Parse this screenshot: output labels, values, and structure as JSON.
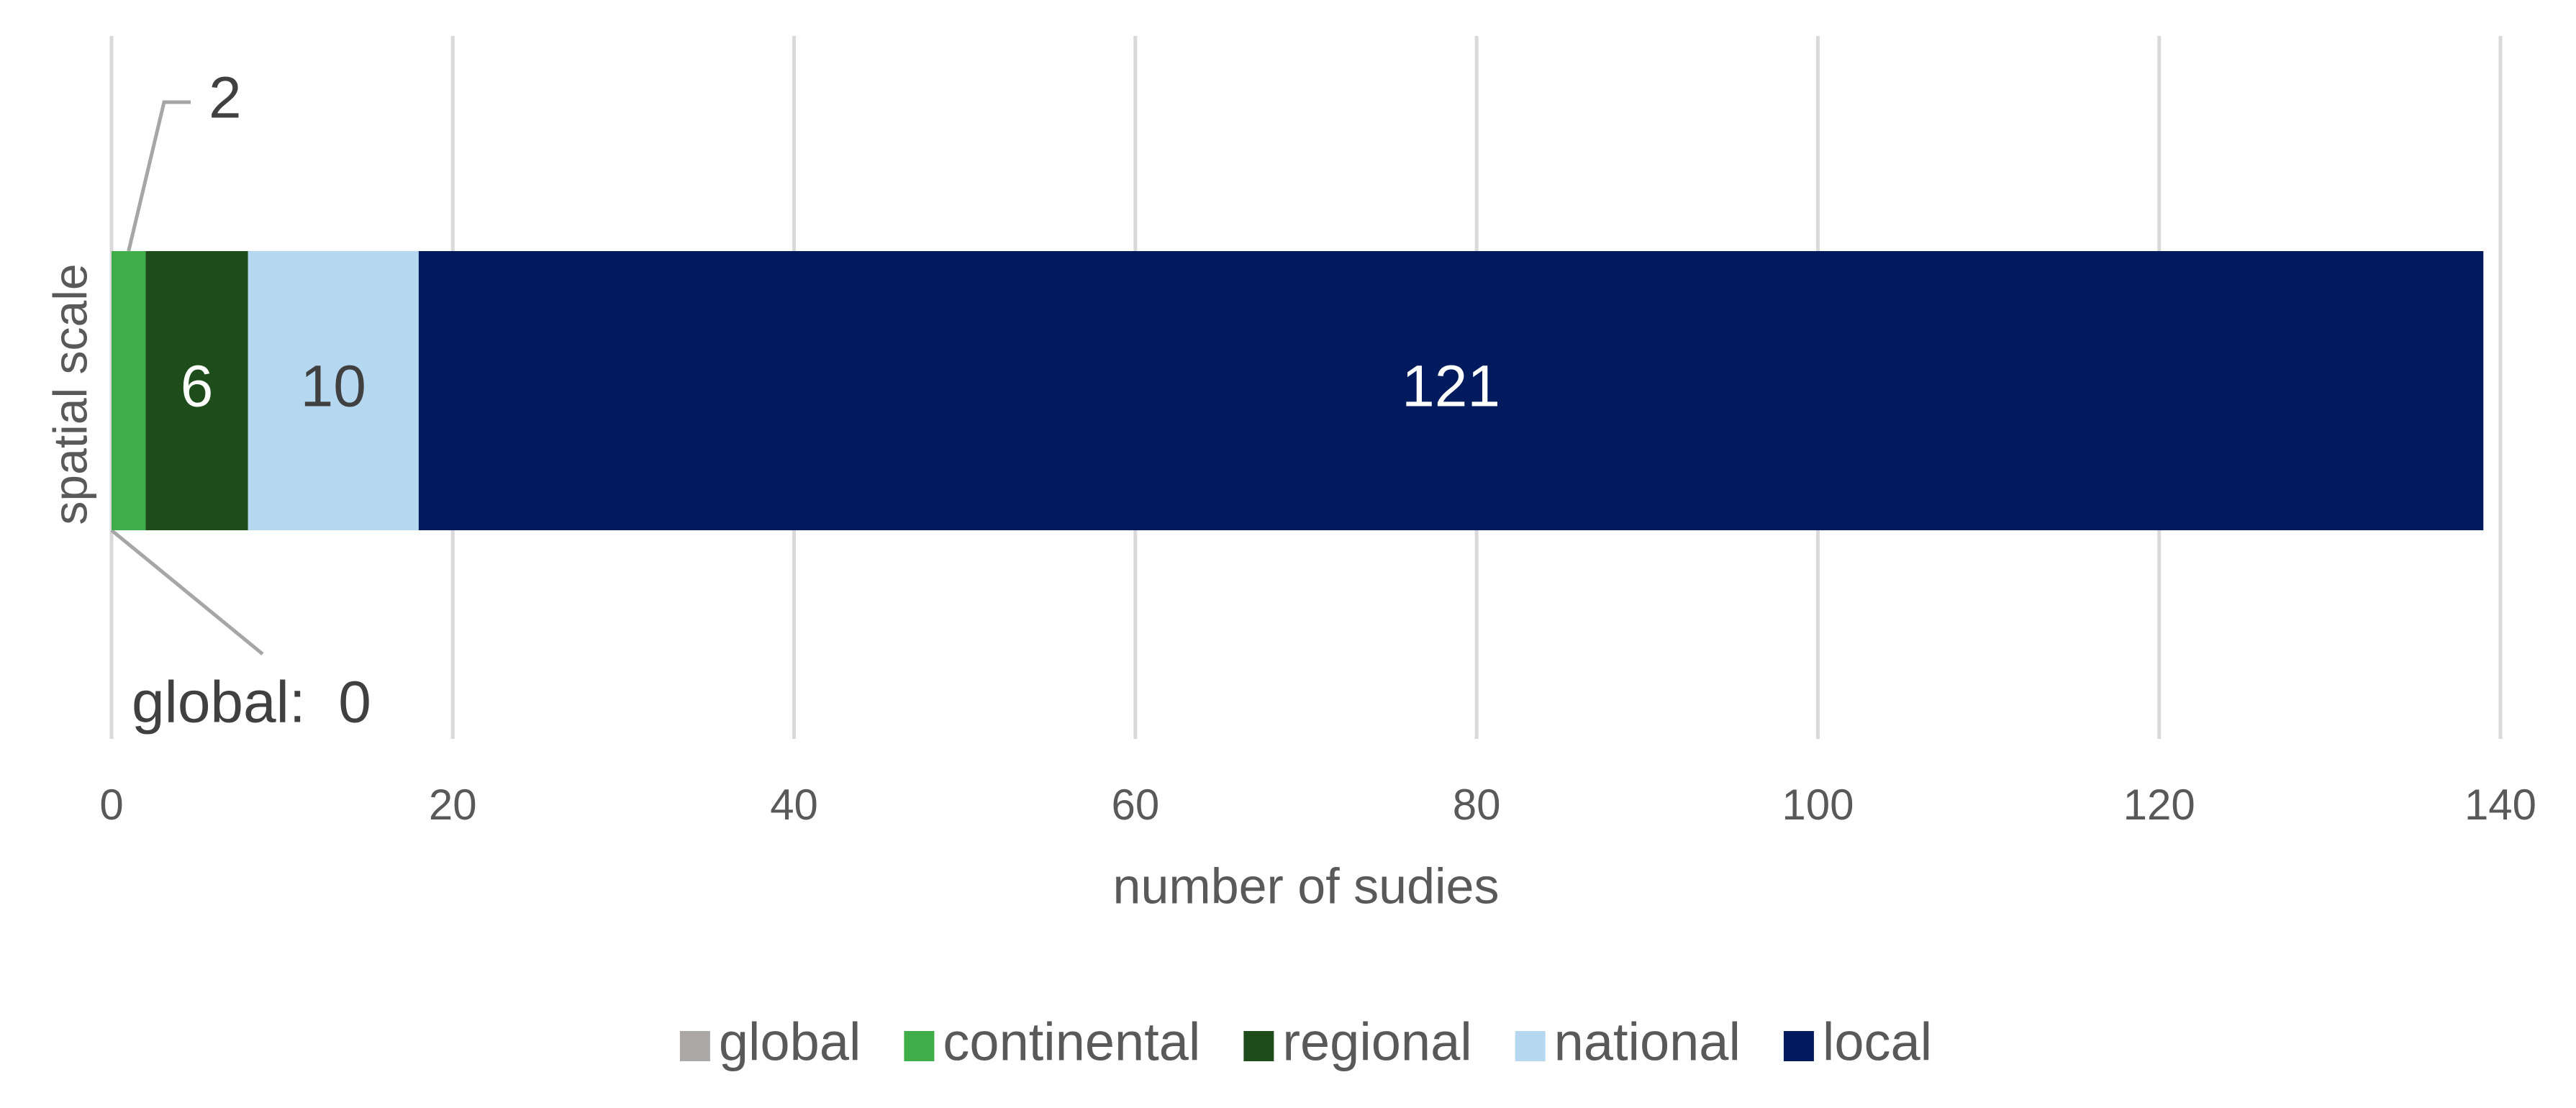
{
  "chart_data": {
    "type": "stacked_bar_horizontal",
    "x_label": "number of sudies",
    "y_label": "spatial scale",
    "series": [
      {
        "name": "global",
        "color": "#aaa7a6",
        "values": [
          0
        ],
        "value_labels": [
          "global:  0"
        ]
      },
      {
        "name": "continental",
        "color": "#3fae49",
        "values": [
          2
        ]
      },
      {
        "name": "regional",
        "color": "#1e4d1b",
        "values": [
          6
        ]
      },
      {
        "name": "national",
        "color": "#b5d8f0",
        "values": [
          10
        ]
      },
      {
        "name": "local",
        "color": "#001a5e",
        "values": [
          121
        ]
      }
    ],
    "xlim": [
      0,
      140
    ],
    "xticks": [
      0,
      20,
      40,
      60,
      80,
      100,
      120,
      140
    ],
    "grid": true,
    "legend": "bottom"
  }
}
